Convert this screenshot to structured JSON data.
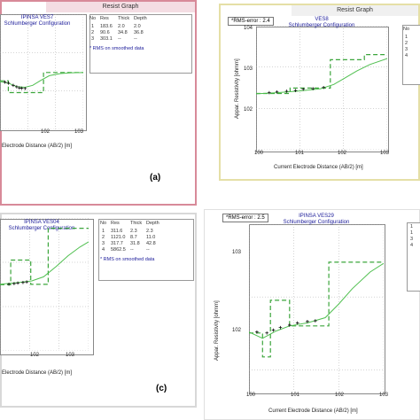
{
  "chart_data": [
    {
      "type": "line",
      "panel_label": "(a)",
      "window_title": "Resist Graph",
      "title": "IPINSA VES7",
      "subtitle": "Schlumberger Configuration",
      "xlabel": "Electrode Distance (AB/2) [m]",
      "xtick_labels": [
        "10^2",
        "10^3"
      ],
      "x_scale": "log",
      "y_scale": "log",
      "xlim": [
        1,
        1000
      ],
      "ylim": [
        10,
        10000
      ],
      "legend_headers": [
        "No",
        "Res",
        "Thick",
        "Depth"
      ],
      "layers": [
        [
          "1",
          "183.6",
          "2.0",
          "2.0"
        ],
        [
          "2",
          "90.6",
          "34.8",
          "36.8"
        ],
        [
          "3",
          "303.1",
          "--",
          "--"
        ]
      ],
      "legend_note": "* RMS on smoothed data",
      "model_steps": [
        [
          1,
          183.6
        ],
        [
          2,
          183.6
        ],
        [
          2,
          90.6
        ],
        [
          36.8,
          90.6
        ],
        [
          36.8,
          303.1
        ],
        [
          1000,
          303.1
        ]
      ],
      "observed": [
        [
          1.5,
          170
        ],
        [
          2,
          160
        ],
        [
          3,
          140
        ],
        [
          4,
          128
        ],
        [
          5,
          120
        ],
        [
          6,
          118
        ],
        [
          8,
          116
        ]
      ],
      "calculated": [
        [
          1,
          175
        ],
        [
          2,
          160
        ],
        [
          4,
          130
        ],
        [
          8,
          125
        ],
        [
          15,
          140
        ],
        [
          30,
          190
        ],
        [
          60,
          250
        ],
        [
          150,
          285
        ],
        [
          400,
          298
        ],
        [
          1000,
          302
        ]
      ]
    },
    {
      "type": "line",
      "window_title": "Resist Graph",
      "rms_label": "*RMS-error :",
      "rms_value": "2.4",
      "title": "VES8",
      "subtitle": "Schlumberger Configuration",
      "xlabel": "Current Electrode Distance (AB/2) [m]",
      "ylabel": "Appar. Resistivity [ohmm]",
      "xtick_labels": [
        "10^0",
        "10^1",
        "10^2",
        "10^3"
      ],
      "ytick_labels": [
        "10^4",
        "10^3",
        "10^2"
      ],
      "x_scale": "log",
      "y_scale": "log",
      "xlim": [
        1,
        1000
      ],
      "ylim": [
        10,
        10000
      ],
      "legend_headers": [
        "No"
      ],
      "legend_rows": [
        "1",
        "2",
        "3",
        "4"
      ],
      "model_steps": [
        [
          1,
          230
        ],
        [
          6,
          230
        ],
        [
          6,
          310
        ],
        [
          50,
          310
        ],
        [
          50,
          1500
        ],
        [
          300,
          1500
        ],
        [
          300,
          2000
        ],
        [
          1000,
          2000
        ]
      ],
      "observed": [
        [
          2,
          240
        ],
        [
          3,
          250
        ],
        [
          5,
          260
        ],
        [
          8,
          270
        ],
        [
          12,
          290
        ],
        [
          20,
          300
        ],
        [
          35,
          320
        ]
      ],
      "calculated": [
        [
          1,
          225
        ],
        [
          3,
          240
        ],
        [
          10,
          265
        ],
        [
          30,
          300
        ],
        [
          60,
          380
        ],
        [
          100,
          520
        ],
        [
          200,
          800
        ],
        [
          400,
          1150
        ],
        [
          1000,
          1600
        ]
      ]
    },
    {
      "type": "line",
      "panel_label": "(c)",
      "title": "IPINSA VES04",
      "subtitle": "Schlumberger Configuration",
      "xlabel": "Electrode Distance (AB/2) [m]",
      "xtick_labels": [
        "10^2",
        "10^3"
      ],
      "x_scale": "log",
      "y_scale": "log",
      "xlim": [
        1,
        1000
      ],
      "ylim": [
        10,
        10000
      ],
      "legend_headers": [
        "No",
        "Res",
        "Thick",
        "Depth"
      ],
      "layers": [
        [
          "1",
          "311.6",
          "2.3",
          "2.3"
        ],
        [
          "2",
          "1121.0",
          "8.7",
          "11.0"
        ],
        [
          "3",
          "317.7",
          "31.8",
          "42.8"
        ],
        [
          "4",
          "5862.5",
          "--",
          "--"
        ]
      ],
      "legend_note": "* RMS on smoothed data",
      "model_steps": [
        [
          1,
          311.6
        ],
        [
          2.3,
          311.6
        ],
        [
          2.3,
          1121
        ],
        [
          11,
          1121
        ],
        [
          11,
          317.7
        ],
        [
          42.8,
          317.7
        ],
        [
          42.8,
          5862.5
        ],
        [
          1000,
          5862.5
        ]
      ],
      "observed": [
        [
          2,
          320
        ],
        [
          3,
          330
        ],
        [
          4,
          340
        ],
        [
          6,
          350
        ],
        [
          8,
          360
        ]
      ],
      "calculated": [
        [
          1,
          320
        ],
        [
          3,
          340
        ],
        [
          6,
          360
        ],
        [
          12,
          380
        ],
        [
          30,
          470
        ],
        [
          80,
          800
        ],
        [
          200,
          1400
        ],
        [
          500,
          2200
        ],
        [
          1000,
          2900
        ]
      ]
    },
    {
      "type": "line",
      "rms_label": "*RMS-error :",
      "rms_value": "2.5",
      "title": "IPINSA VES29",
      "subtitle": "Schlumberger Configuration",
      "xlabel": "Current Electrode Distance (AB/2) [m]",
      "ylabel": "Appar. Resistivity [ohmm]",
      "xtick_labels": [
        "10^0",
        "10^1",
        "10^2",
        "10^3"
      ],
      "ytick_labels": [
        "10^3",
        "10^2"
      ],
      "x_scale": "log",
      "y_scale": "log",
      "xlim": [
        1,
        1000
      ],
      "ylim": [
        50,
        10000
      ],
      "legend_rows": [
        "1",
        "1",
        "3",
        "4"
      ],
      "model_steps": [
        [
          1,
          320
        ],
        [
          2,
          320
        ],
        [
          2,
          150
        ],
        [
          3,
          150
        ],
        [
          3,
          900
        ],
        [
          8,
          900
        ],
        [
          8,
          400
        ],
        [
          60,
          400
        ],
        [
          60,
          3000
        ],
        [
          1000,
          3000
        ]
      ],
      "observed": [
        [
          1.5,
          330
        ],
        [
          2.5,
          320
        ],
        [
          3.5,
          350
        ],
        [
          5,
          380
        ],
        [
          8,
          410
        ],
        [
          12,
          440
        ],
        [
          20,
          460
        ],
        [
          30,
          470
        ]
      ],
      "calculated": [
        [
          1,
          330
        ],
        [
          2,
          270
        ],
        [
          4,
          340
        ],
        [
          8,
          400
        ],
        [
          20,
          440
        ],
        [
          50,
          520
        ],
        [
          100,
          800
        ],
        [
          200,
          1300
        ],
        [
          500,
          2200
        ],
        [
          1000,
          2900
        ]
      ]
    }
  ]
}
